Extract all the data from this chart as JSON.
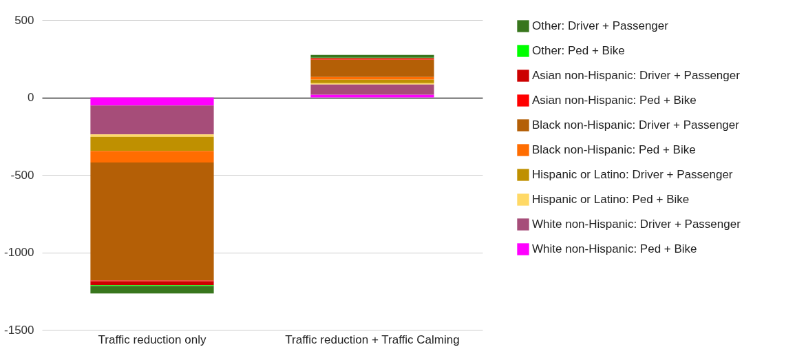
{
  "chart_data": {
    "type": "bar",
    "stacked": true,
    "categories": [
      "Traffic reduction only",
      "Traffic reduction + Traffic Calming"
    ],
    "series": [
      {
        "name": "White non-Hispanic: Ped + Bike",
        "color": "#ff00ff",
        "values": [
          -52,
          18
        ]
      },
      {
        "name": "White non-Hispanic: Driver + Passenger",
        "color": "#a64d79",
        "values": [
          -187,
          67
        ]
      },
      {
        "name": "Hispanic or Latino: Ped + Bike",
        "color": "#ffd966",
        "values": [
          -15,
          7
        ]
      },
      {
        "name": "Hispanic or Latino: Driver + Passenger",
        "color": "#bf9000",
        "values": [
          -92,
          24
        ]
      },
      {
        "name": "Black non-Hispanic: Ped + Bike",
        "color": "#ff6d01",
        "values": [
          -74,
          16
        ]
      },
      {
        "name": "Black non-Hispanic: Driver + Passenger",
        "color": "#b45f06",
        "values": [
          -762,
          113
        ]
      },
      {
        "name": "Asian non-Hispanic: Ped + Bike",
        "color": "#ff0000",
        "values": [
          -5,
          7
        ]
      },
      {
        "name": "Asian non-Hispanic: Driver + Passenger",
        "color": "#cc0000",
        "values": [
          -25,
          3
        ]
      },
      {
        "name": "Other: Ped + Bike",
        "color": "#00ff00",
        "values": [
          -5,
          2
        ]
      },
      {
        "name": "Other: Driver + Passenger",
        "color": "#38761d",
        "values": [
          -48,
          17
        ]
      }
    ],
    "ylim": [
      -1500,
      500
    ],
    "yticks": [
      -1500,
      -1000,
      -500,
      0,
      500
    ],
    "grid": true,
    "legend": "right"
  }
}
